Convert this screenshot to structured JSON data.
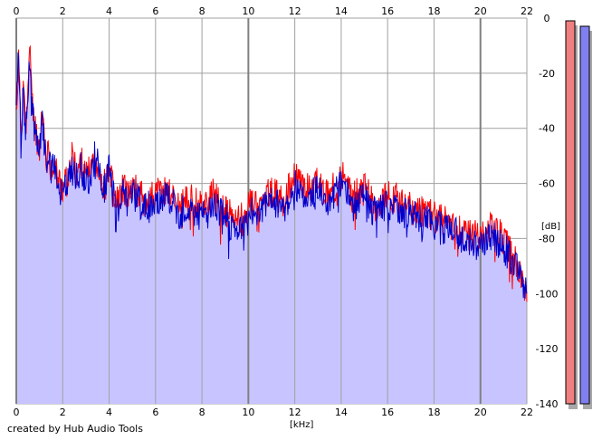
{
  "footer": {
    "credit": "created by Hub Audio Tools"
  },
  "chart_data": {
    "type": "area",
    "xlabel": "[kHz]",
    "ylabel": "[dB]",
    "xlim": [
      0,
      22
    ],
    "ylim": [
      -140,
      0
    ],
    "x_ticks": [
      0,
      2,
      4,
      6,
      8,
      10,
      12,
      14,
      16,
      18,
      20,
      22
    ],
    "y_ticks": [
      0,
      -20,
      -40,
      -60,
      -80,
      -100,
      -120,
      -140
    ],
    "grid": true,
    "colors": {
      "left": "#ff0000",
      "right": "#0000cc",
      "fill": "#c8c4ff",
      "grid": "#a0a0a0",
      "meter_left": "#f08080",
      "meter_right": "#8080f0",
      "meter_shadow": "#a8a8a8"
    },
    "series": [
      {
        "color_key": "left",
        "x": [
          0,
          0.1,
          0.2,
          0.3,
          0.4,
          0.5,
          0.6,
          0.7,
          0.8,
          0.9,
          1.0,
          1.1,
          1.2,
          1.3,
          1.4,
          1.5,
          1.6,
          1.8,
          2.0,
          2.2,
          2.4,
          2.6,
          2.8,
          3.0,
          3.2,
          3.4,
          3.6,
          3.8,
          4.0,
          4.2,
          4.4,
          4.6,
          4.8,
          5.0,
          5.5,
          6.0,
          6.5,
          7.0,
          7.5,
          8.0,
          8.5,
          9.0,
          9.5,
          10.0,
          10.5,
          11.0,
          11.5,
          12.0,
          12.5,
          13.0,
          13.5,
          14.0,
          14.5,
          15.0,
          15.5,
          16.0,
          16.5,
          17.0,
          17.5,
          18.0,
          18.5,
          19.0,
          19.5,
          20.0,
          20.5,
          21.0,
          21.5,
          22.0
        ],
        "y": [
          -35,
          -15,
          -42,
          -22,
          -40,
          -28,
          -10,
          -32,
          -38,
          -44,
          -47,
          -34,
          -41,
          -54,
          -47,
          -55,
          -52,
          -58,
          -62,
          -58,
          -50,
          -56,
          -52,
          -58,
          -55,
          -50,
          -55,
          -60,
          -53,
          -63,
          -66,
          -61,
          -64,
          -60,
          -66,
          -64,
          -62,
          -68,
          -66,
          -68,
          -64,
          -70,
          -74,
          -68,
          -66,
          -63,
          -66,
          -58,
          -62,
          -60,
          -64,
          -57,
          -65,
          -62,
          -68,
          -64,
          -66,
          -69,
          -70,
          -72,
          -74,
          -75,
          -79,
          -79,
          -76,
          -80,
          -88,
          -103
        ]
      },
      {
        "color_key": "right",
        "x": [
          0,
          0.1,
          0.2,
          0.3,
          0.4,
          0.5,
          0.6,
          0.7,
          0.8,
          0.9,
          1.0,
          1.1,
          1.2,
          1.3,
          1.4,
          1.5,
          1.6,
          1.8,
          2.0,
          2.2,
          2.4,
          2.6,
          2.8,
          3.0,
          3.2,
          3.4,
          3.6,
          3.8,
          4.0,
          4.2,
          4.4,
          4.6,
          4.8,
          5.0,
          5.5,
          6.0,
          6.5,
          7.0,
          7.5,
          8.0,
          8.5,
          9.0,
          9.5,
          10.0,
          10.5,
          11.0,
          11.5,
          12.0,
          12.5,
          13.0,
          13.5,
          14.0,
          14.5,
          15.0,
          15.5,
          16.0,
          16.5,
          17.0,
          17.5,
          18.0,
          18.5,
          19.0,
          19.5,
          20.0,
          20.5,
          21.0,
          21.5,
          22.0
        ],
        "y": [
          -30,
          -10,
          -45,
          -25,
          -42,
          -30,
          -12,
          -35,
          -41,
          -46,
          -50,
          -37,
          -44,
          -55,
          -49,
          -57,
          -54,
          -60,
          -64,
          -60,
          -52,
          -58,
          -54,
          -60,
          -57,
          -48,
          -57,
          -62,
          -55,
          -66,
          -70,
          -63,
          -67,
          -63,
          -69,
          -67,
          -64,
          -71,
          -69,
          -72,
          -67,
          -73,
          -77,
          -71,
          -69,
          -66,
          -69,
          -61,
          -65,
          -63,
          -67,
          -60,
          -68,
          -65,
          -71,
          -67,
          -69,
          -72,
          -73,
          -75,
          -77,
          -78,
          -82,
          -82,
          -79,
          -83,
          -90,
          -100
        ]
      }
    ]
  }
}
